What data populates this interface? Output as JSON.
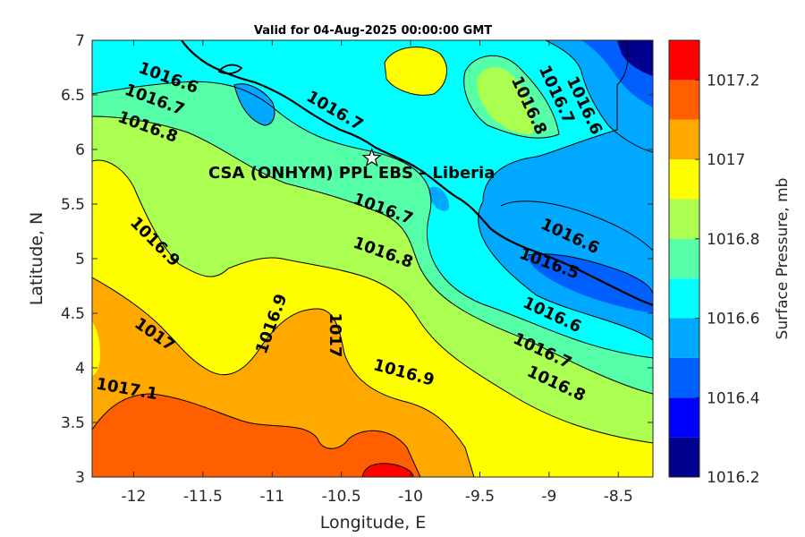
{
  "title": "Valid for 04-Aug-2025 00:00:00 GMT",
  "site_label": "CSA (ONHYM) PPL EBS  – Liberia",
  "chart_data": {
    "type": "filled-contour-map",
    "xlabel": "Longitude, E",
    "ylabel": "Latitude, N",
    "xlim": [
      -12.3,
      -8.25
    ],
    "ylim": [
      3,
      7
    ],
    "xticks": [
      -12,
      -11.5,
      -11,
      -10.5,
      -10,
      -9.5,
      -9,
      -8.5
    ],
    "yticks": [
      3,
      3.5,
      4,
      4.5,
      5,
      5.5,
      6,
      6.5,
      7
    ],
    "colorbar": {
      "label": "Surface Pressure, mb",
      "range": [
        1016.2,
        1017.3
      ],
      "ticks": [
        1016.2,
        1016.4,
        1016.6,
        1016.8,
        1017,
        1017.2
      ],
      "levels": [
        1016.2,
        1016.3,
        1016.4,
        1016.5,
        1016.6,
        1016.7,
        1016.8,
        1016.9,
        1017.0,
        1017.1,
        1017.2,
        1017.3
      ],
      "colors": [
        "#00008f",
        "#0000ff",
        "#005fff",
        "#00a8ff",
        "#00ffff",
        "#55ffa8",
        "#aaff50",
        "#ffff00",
        "#ffa800",
        "#ff5f00",
        "#ff0000",
        "#aa0000"
      ]
    },
    "contour_labels": [
      {
        "text": "1016.6",
        "lon": -11.75,
        "lat": 6.65,
        "angle": 20
      },
      {
        "text": "1016.7",
        "lon": -11.85,
        "lat": 6.45,
        "angle": 20
      },
      {
        "text": "1016.8",
        "lon": -11.9,
        "lat": 6.2,
        "angle": 20
      },
      {
        "text": "1016.7",
        "lon": -10.55,
        "lat": 6.35,
        "angle": 30
      },
      {
        "text": "1016.8",
        "lon": -9.15,
        "lat": 6.4,
        "angle": 65
      },
      {
        "text": "1016.7",
        "lon": -8.95,
        "lat": 6.5,
        "angle": 65
      },
      {
        "text": "1016.6",
        "lon": -8.75,
        "lat": 6.4,
        "angle": 65
      },
      {
        "text": "1016.9",
        "lon": -11.85,
        "lat": 5.15,
        "angle": 45
      },
      {
        "text": "1016.7",
        "lon": -10.2,
        "lat": 5.45,
        "angle": 20
      },
      {
        "text": "1016.8",
        "lon": -10.2,
        "lat": 5.05,
        "angle": 20
      },
      {
        "text": "1016.6",
        "lon": -8.85,
        "lat": 5.2,
        "angle": 25
      },
      {
        "text": "1016.5",
        "lon": -9.0,
        "lat": 4.95,
        "angle": 20
      },
      {
        "text": "1016.9",
        "lon": -11.0,
        "lat": 4.4,
        "angle": -70
      },
      {
        "text": "1017",
        "lon": -10.55,
        "lat": 4.3,
        "angle": 90
      },
      {
        "text": "1017",
        "lon": -11.85,
        "lat": 4.3,
        "angle": 35
      },
      {
        "text": "1017.1",
        "lon": -12.05,
        "lat": 3.8,
        "angle": 10
      },
      {
        "text": "1016.9",
        "lon": -10.05,
        "lat": 3.95,
        "angle": 15
      },
      {
        "text": "1016.6",
        "lon": -8.98,
        "lat": 4.48,
        "angle": 25
      },
      {
        "text": "1016.7",
        "lon": -9.05,
        "lat": 4.15,
        "angle": 25
      },
      {
        "text": "1016.8",
        "lon": -8.95,
        "lat": 3.85,
        "angle": 25
      }
    ],
    "site": {
      "lon": -10.28,
      "lat": 5.92
    }
  }
}
